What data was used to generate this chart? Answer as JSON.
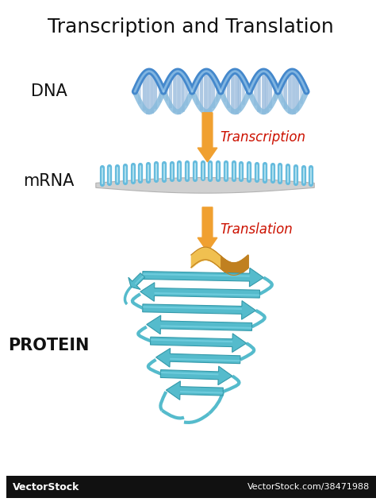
{
  "title": "Transcription and Translation",
  "title_fontsize": 18,
  "title_color": "#111111",
  "bg_color": "#ffffff",
  "dna_label": "DNA",
  "mrna_label": "mRNA",
  "protein_label": "PROTEIN",
  "label_fontsize": 15,
  "label_color": "#111111",
  "transcription_label": "Transcription",
  "translation_label": "Translation",
  "process_label_color": "#cc1100",
  "process_label_fontsize": 12,
  "arrow_color": "#f0a030",
  "arrow_color_light": "#ffd080",
  "dna_color1": "#4488cc",
  "dna_color2": "#88bbdd",
  "dna_rung_color": "#99bbdd",
  "mrna_color": "#66bbdd",
  "mrna_backbone_color": "#aaaaaa",
  "protein_color": "#55bbcc",
  "protein_color_dark": "#3399aa",
  "protein_color_light": "#88ddee",
  "protein_helix_color": "#f0c050",
  "protein_helix_dark": "#c08020",
  "watermark_text": "VectorStock",
  "watermark_url": "VectorStock.com/38471988"
}
